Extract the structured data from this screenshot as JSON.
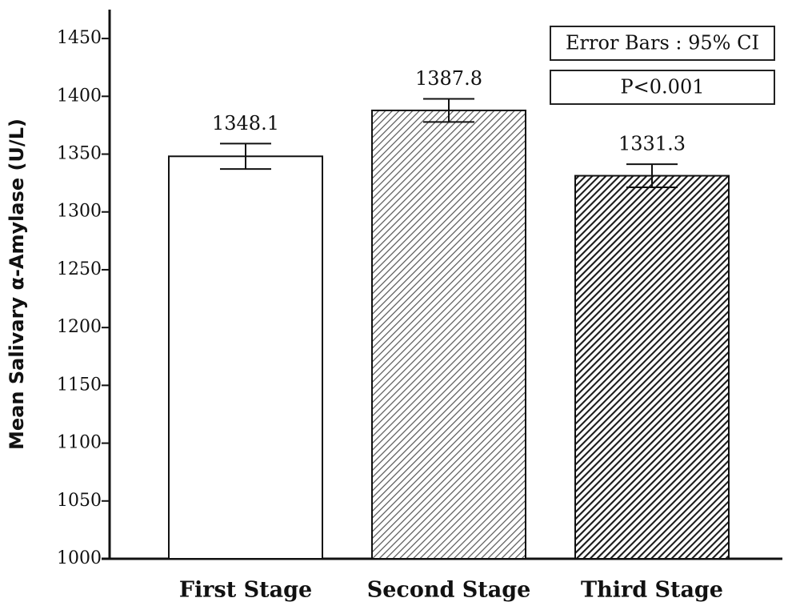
{
  "chart_data": {
    "type": "bar",
    "y_label": "Mean Salivary α-Amylase (U/L)",
    "categories": [
      "First Stage",
      "Second Stage",
      "Third Stage"
    ],
    "values": [
      1348.1,
      1387.8,
      1331.3
    ],
    "errors": [
      11,
      10,
      10
    ],
    "colors": [
      "#ffffff",
      "#555555",
      "#1a1a1a"
    ],
    "hatched": [
      false,
      true,
      true
    ],
    "annotations": [
      "Error Bars : 95% CI",
      "P<0.001"
    ],
    "ylim": [
      1000,
      1475
    ],
    "yticks": [
      1000,
      1050,
      1100,
      1150,
      1200,
      1250,
      1300,
      1350,
      1400,
      1450
    ],
    "grid": false
  }
}
